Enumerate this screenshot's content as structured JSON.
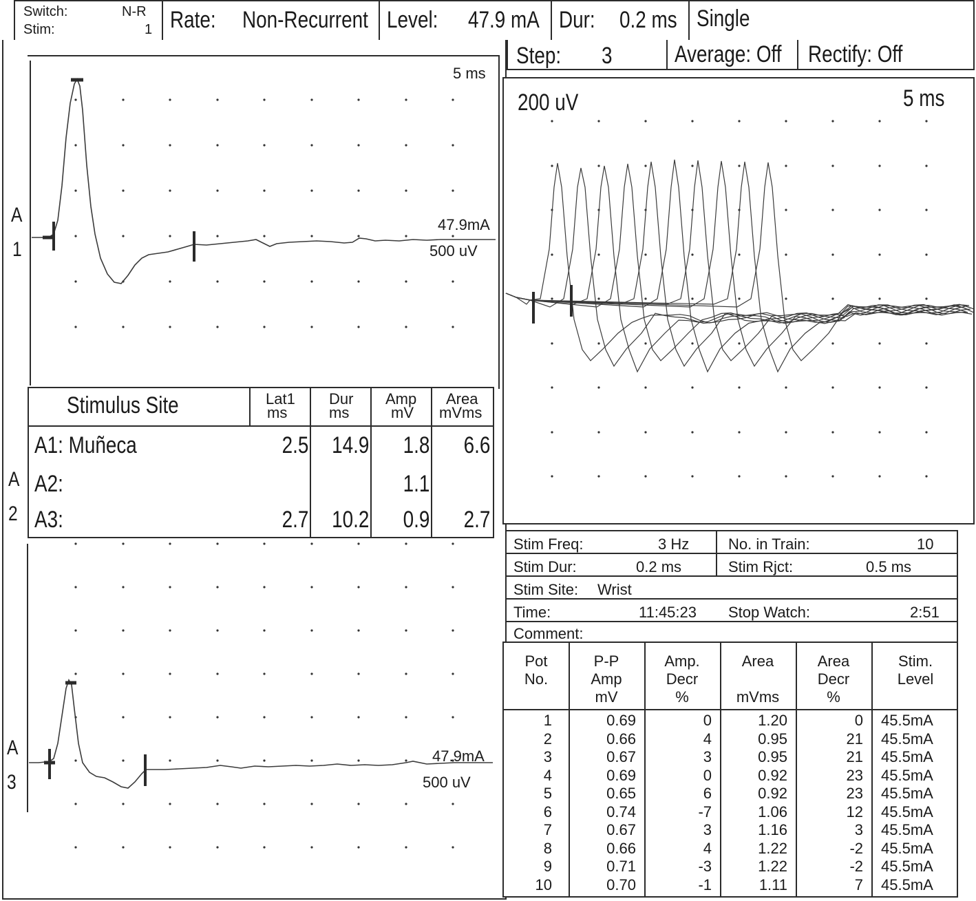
{
  "header": {
    "switch_label": "Switch:",
    "switch_value": "N-R",
    "stim_label": "Stim:",
    "stim_value": "1",
    "rate_label": "Rate:",
    "rate_value": "Non-Recurrent",
    "level_label": "Level:",
    "level_value": "47.9 mA",
    "dur_label": "Dur:",
    "dur_value": "0.2 ms",
    "mode_value": "Single"
  },
  "right_header": {
    "step_label": "Step:",
    "step_value": "3",
    "average_label": "Average: Off",
    "rectify_label": "Rectify: Off"
  },
  "left_trace_top": {
    "time_scale": "5 ms",
    "level": "47.9mA",
    "amp_scale": "500 uV",
    "channel_letter": "A",
    "channel_number": "1"
  },
  "left_trace_bottom": {
    "level": "47.9mA",
    "amp_scale": "500 uV",
    "channel_letter": "A",
    "channel_number": "3"
  },
  "channel_a2": {
    "letter": "A",
    "number": "2"
  },
  "stim_table": {
    "headers": [
      {
        "line1": "Stimulus Site",
        "line2": ""
      },
      {
        "line1": "Lat1",
        "line2": "ms"
      },
      {
        "line1": "Dur",
        "line2": "ms"
      },
      {
        "line1": "Amp",
        "line2": "mV"
      },
      {
        "line1": "Area",
        "line2": "mVms"
      }
    ],
    "rows": [
      {
        "site": "A1: Muñeca",
        "lat": "2.5",
        "dur": "14.9",
        "amp": "1.8",
        "area": "6.6"
      },
      {
        "site": "A2:",
        "lat": "",
        "dur": "",
        "amp": "1.1",
        "area": ""
      },
      {
        "site": "A3:",
        "lat": "2.7",
        "dur": "10.2",
        "amp": "0.9",
        "area": "2.7"
      }
    ]
  },
  "train_panel": {
    "amp_scale": "200 uV",
    "time_scale": "5 ms"
  },
  "stim_info": {
    "freq_label": "Stim Freq:",
    "freq_value": "3 Hz",
    "train_label": "No. in Train:",
    "train_value": "10",
    "dur_label": "Stim Dur:",
    "dur_value": "0.2 ms",
    "rjct_label": "Stim Rjct:",
    "rjct_value": "0.5 ms",
    "site_label": "Stim Site:",
    "site_value": "Wrist",
    "time_label": "Time:",
    "time_value": "11:45:23",
    "stopwatch_label": "Stop Watch:",
    "stopwatch_value": "2:51",
    "comment_label": "Comment:"
  },
  "pot_table": {
    "headers": [
      [
        "Pot",
        "No.",
        ""
      ],
      [
        "P-P",
        "Amp",
        "mV"
      ],
      [
        "Amp.",
        "Decr",
        "%"
      ],
      [
        "Area",
        "",
        "mVms"
      ],
      [
        "Area",
        "Decr",
        "%"
      ],
      [
        "Stim.",
        "Level",
        ""
      ]
    ],
    "rows": [
      [
        "1",
        "0.69",
        "0",
        "1.20",
        "0",
        "45.5mA"
      ],
      [
        "2",
        "0.66",
        "4",
        "0.95",
        "21",
        "45.5mA"
      ],
      [
        "3",
        "0.67",
        "3",
        "0.95",
        "21",
        "45.5mA"
      ],
      [
        "4",
        "0.69",
        "0",
        "0.92",
        "23",
        "45.5mA"
      ],
      [
        "5",
        "0.65",
        "6",
        "0.92",
        "23",
        "45.5mA"
      ],
      [
        "6",
        "0.74",
        "-7",
        "1.06",
        "12",
        "45.5mA"
      ],
      [
        "7",
        "0.67",
        "3",
        "1.16",
        "3",
        "45.5mA"
      ],
      [
        "8",
        "0.66",
        "4",
        "1.22",
        "-2",
        "45.5mA"
      ],
      [
        "9",
        "0.71",
        "-3",
        "1.22",
        "-2",
        "45.5mA"
      ],
      [
        "10",
        "0.70",
        "-1",
        "1.11",
        "7",
        "45.5mA"
      ]
    ]
  }
}
